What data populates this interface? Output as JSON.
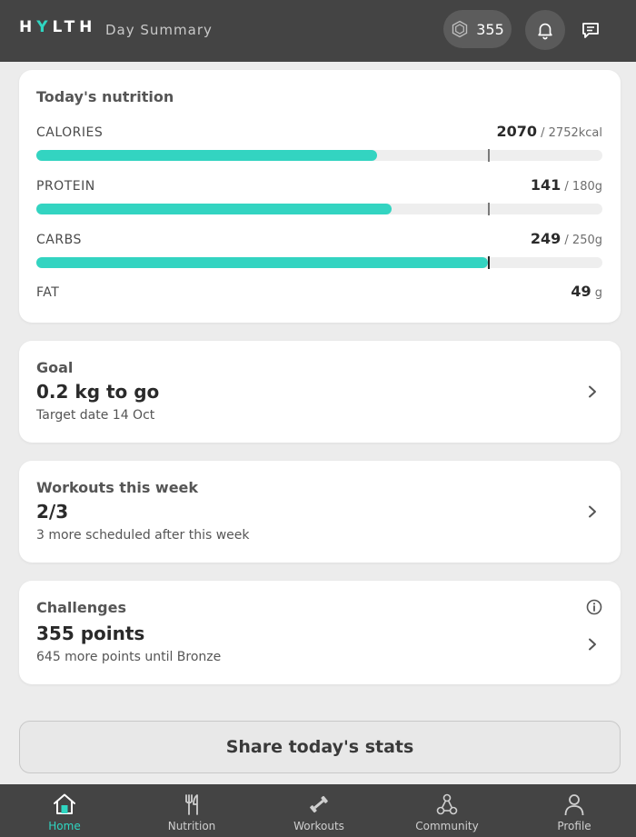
{
  "header": {
    "logo_pre": "H",
    "logo_accent": "Y",
    "logo_post": "LTH",
    "title": "Day Summary",
    "points": "355",
    "points_icon": "hexagon-icon",
    "bell_icon": "bell-icon",
    "chat_icon": "chat-icon"
  },
  "nutrition": {
    "title": "Today's nutrition",
    "macros": [
      {
        "label": "CALORIES",
        "value": "2070",
        "target": "/ 2752kcal",
        "progress": 0.602,
        "target_mark": 0.8
      },
      {
        "label": "PROTEIN",
        "value": "141",
        "target": "/ 180g",
        "progress": 0.627,
        "target_mark": 0.8
      },
      {
        "label": "CARBS",
        "value": "249",
        "target": "/ 250g",
        "progress": 0.797,
        "target_mark": 0.8
      },
      {
        "label": "FAT",
        "value": "49",
        "unit": "g"
      }
    ]
  },
  "goal": {
    "title": "Goal",
    "headline": "0.2 kg to go",
    "sub": "Target date 14 Oct"
  },
  "workouts": {
    "title": "Workouts this week",
    "headline": "2/3",
    "sub": "3 more scheduled after this week"
  },
  "challenges": {
    "title": "Challenges",
    "headline": "355 points",
    "sub": "645 more points until Bronze"
  },
  "share_label": "Share today's stats",
  "nav": [
    {
      "label": "Home",
      "icon": "home-icon",
      "active": true
    },
    {
      "label": "Nutrition",
      "icon": "fork-knife-icon"
    },
    {
      "label": "Workouts",
      "icon": "dumbbell-icon"
    },
    {
      "label": "Community",
      "icon": "community-icon"
    },
    {
      "label": "Profile",
      "icon": "profile-icon"
    }
  ],
  "colors": {
    "accent": "#33d4c1",
    "header": "#444444",
    "background": "#ececec"
  }
}
